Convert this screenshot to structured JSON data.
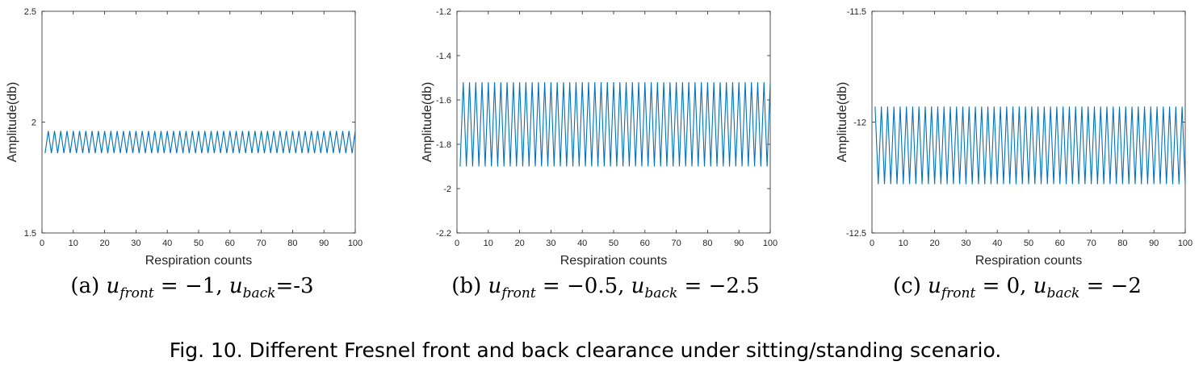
{
  "chart_data": [
    {
      "type": "line",
      "subcaption": {
        "label": "(a)",
        "text": "u_front = −1, u_back=-3"
      },
      "xlabel": "Respiration counts",
      "ylabel": "Amplitude(db)",
      "xlim": [
        0,
        100
      ],
      "ylim": [
        1.5,
        2.5
      ],
      "xticks": [
        0,
        10,
        20,
        30,
        40,
        50,
        60,
        70,
        80,
        90,
        100
      ],
      "yticks": [
        1.5,
        2,
        2.5
      ],
      "ytick_labels": [
        "1.5",
        "2",
        "2.5"
      ],
      "series": [
        {
          "color": "#0072BD",
          "x_start": 1,
          "x_end": 100,
          "high": 1.96,
          "low": 1.86,
          "starts_with": "low"
        }
      ]
    },
    {
      "type": "line",
      "subcaption": {
        "label": "(b)",
        "text": "u_front = −0.5, u_back = −2.5"
      },
      "xlabel": "Respiration counts",
      "ylabel": "Amplitude(db)",
      "xlim": [
        0,
        100
      ],
      "ylim": [
        -2.2,
        -1.2
      ],
      "xticks": [
        0,
        10,
        20,
        30,
        40,
        50,
        60,
        70,
        80,
        90,
        100
      ],
      "yticks": [
        -2.2,
        -2,
        -1.8,
        -1.6,
        -1.4,
        -1.2
      ],
      "ytick_labels": [
        "-2.2",
        "-2",
        "-1.8",
        "-1.6",
        "-1.4",
        "-1.2"
      ],
      "series": [
        {
          "color": "#0072BD",
          "x_start": 1,
          "x_end": 100,
          "high": -1.52,
          "low": -1.9,
          "starts_with": "low"
        }
      ]
    },
    {
      "type": "line",
      "subcaption": {
        "label": "(c)",
        "text": "u_front = 0, u_back = −2"
      },
      "xlabel": "Respiration counts",
      "ylabel": "Amplitude(db)",
      "xlim": [
        0,
        100
      ],
      "ylim": [
        -12.5,
        -11.5
      ],
      "xticks": [
        0,
        10,
        20,
        30,
        40,
        50,
        60,
        70,
        80,
        90,
        100
      ],
      "yticks": [
        -12.5,
        -12,
        -11.5
      ],
      "ytick_labels": [
        "-12.5",
        "-12",
        "-11.5"
      ],
      "series": [
        {
          "color": "#0072BD",
          "x_start": 1,
          "x_end": 100,
          "high": -11.93,
          "low": -12.28,
          "starts_with": "high"
        }
      ]
    }
  ],
  "caption": "Fig. 10.  Different Fresnel front and back clearance under sitting/standing scenario."
}
